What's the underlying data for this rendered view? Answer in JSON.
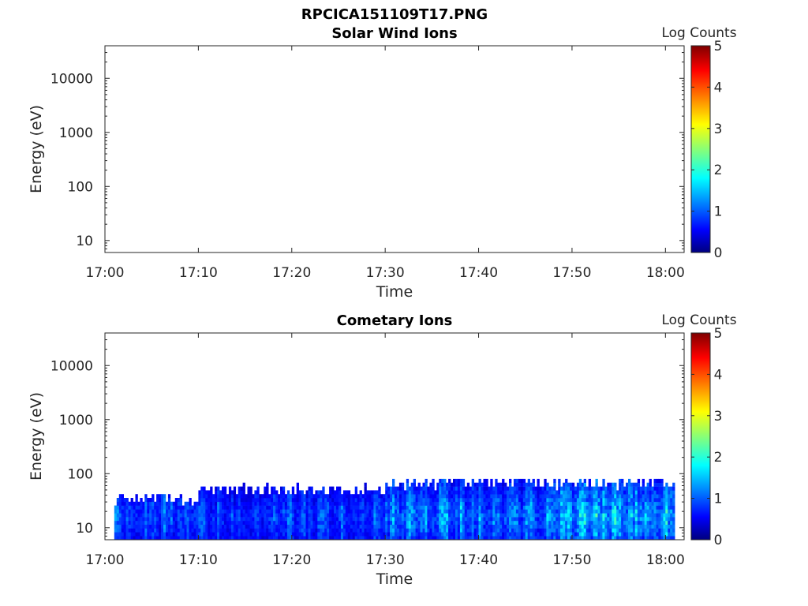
{
  "figure_title": "RPCICA151109T17.PNG",
  "colors": {
    "axis": "#262626",
    "colormap": [
      "#00007f",
      "#0000ff",
      "#00ffff",
      "#ffff00",
      "#ff0000",
      "#7f0000"
    ]
  },
  "chart_data": [
    {
      "type": "heatmap",
      "title": "Solar Wind Ions",
      "xlabel": "Time",
      "ylabel": "Energy (eV)",
      "x_ticks": [
        "17:00",
        "17:10",
        "17:20",
        "17:30",
        "17:40",
        "17:50",
        "18:00"
      ],
      "xlim": [
        "17:00",
        "18:02"
      ],
      "y_ticks": [
        "10",
        "100",
        "1000",
        "10000"
      ],
      "y_scale": "log",
      "ylim": [
        6,
        40000
      ],
      "colorbar": {
        "label": "Log Counts",
        "ticks": [
          "0",
          "1",
          "2",
          "3",
          "4",
          "5"
        ],
        "range": [
          0,
          5
        ]
      },
      "cells": []
    },
    {
      "type": "heatmap",
      "title": "Cometary Ions",
      "xlabel": "Time",
      "ylabel": "Energy (eV)",
      "x_ticks": [
        "17:00",
        "17:10",
        "17:20",
        "17:30",
        "17:40",
        "17:50",
        "18:00"
      ],
      "xlim": [
        "17:00",
        "18:02"
      ],
      "y_ticks": [
        "10",
        "100",
        "1000",
        "10000"
      ],
      "y_scale": "log",
      "ylim": [
        6,
        40000
      ],
      "colorbar": {
        "label": "Log Counts",
        "ticks": [
          "0",
          "1",
          "2",
          "3",
          "4",
          "5"
        ],
        "range": [
          0,
          5
        ]
      },
      "data_time_range": [
        "17:01",
        "18:01"
      ],
      "data_energy_range_eV": [
        6,
        80
      ],
      "segments": [
        {
          "from": "17:01",
          "to": "17:10",
          "max_energy": 40,
          "peak_log_counts": 1.3
        },
        {
          "from": "17:10",
          "to": "17:30",
          "max_energy": 60,
          "peak_log_counts": 1.2
        },
        {
          "from": "17:30",
          "to": "17:40",
          "max_energy": 80,
          "peak_log_counts": 1.6
        },
        {
          "from": "17:40",
          "to": "17:48",
          "max_energy": 80,
          "peak_log_counts": 1.5
        },
        {
          "from": "17:48",
          "to": "18:01",
          "max_energy": 80,
          "peak_log_counts": 2.0
        }
      ]
    }
  ]
}
